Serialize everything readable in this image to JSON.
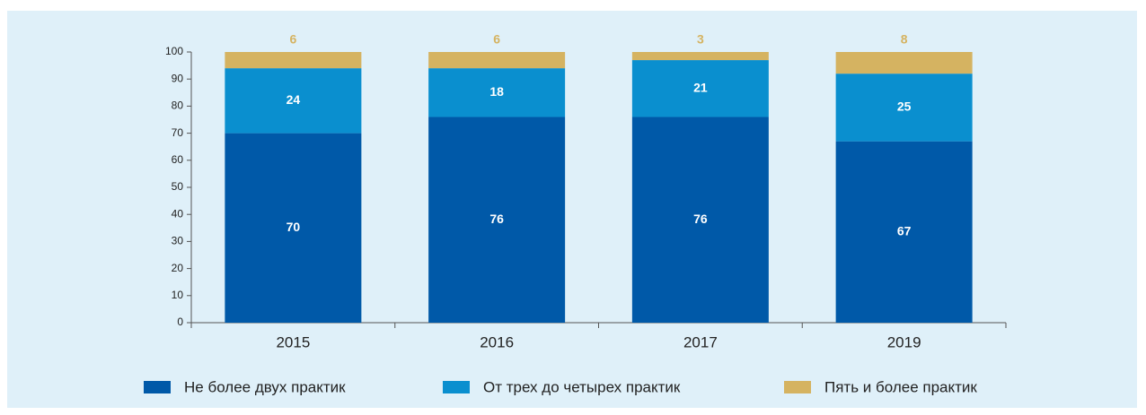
{
  "chart_data": {
    "type": "bar",
    "stacked": true,
    "categories": [
      "2015",
      "2016",
      "2017",
      "2019"
    ],
    "series": [
      {
        "name": "Не более двух практик",
        "color": "#0059a8",
        "values": [
          70,
          76,
          76,
          67
        ]
      },
      {
        "name": "От трех до четырех практик",
        "color": "#0a8fcf",
        "values": [
          24,
          18,
          21,
          25
        ]
      },
      {
        "name": "Пять и более практик",
        "color": "#d5b361",
        "values": [
          6,
          6,
          3,
          8
        ]
      }
    ],
    "ylim": [
      0,
      100
    ],
    "yticks": [
      0,
      10,
      20,
      30,
      40,
      50,
      60,
      70,
      80,
      90,
      100
    ],
    "legend": "bottom"
  }
}
